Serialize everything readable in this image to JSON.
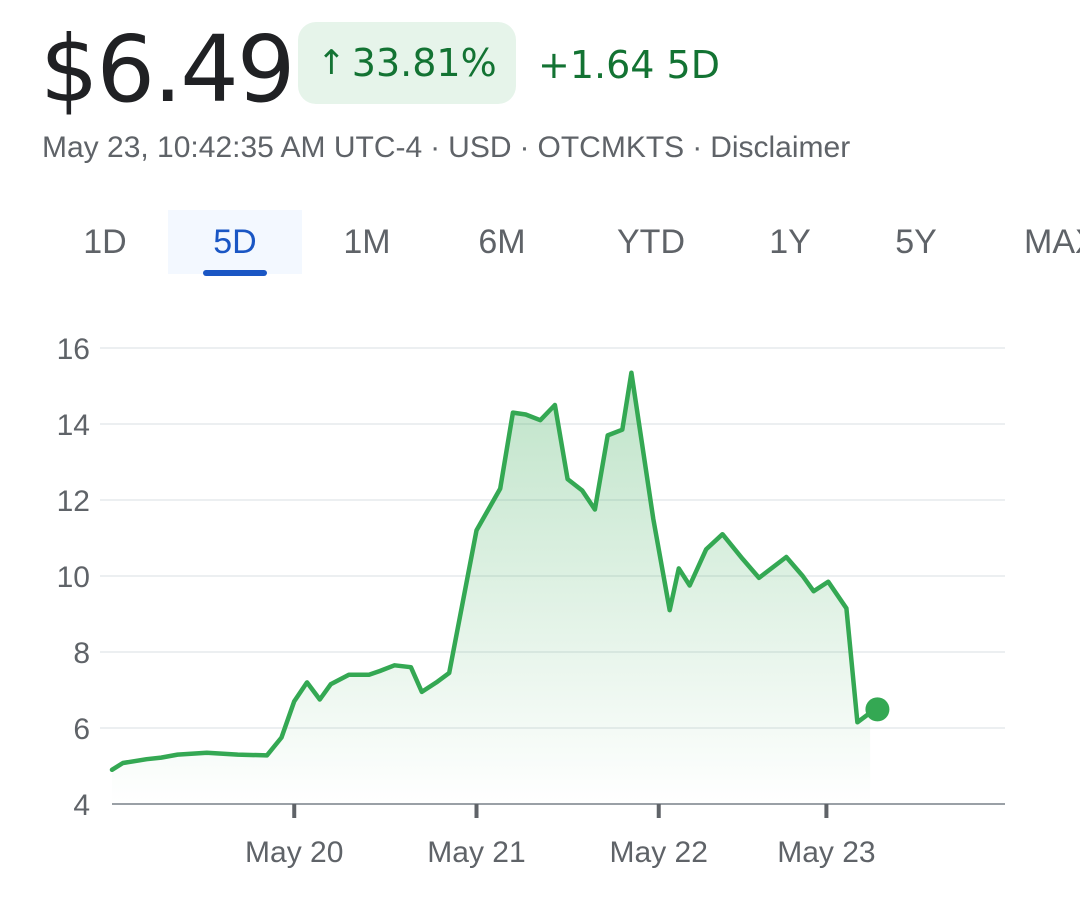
{
  "quote": {
    "price": "$6.49",
    "change_percent": "33.81%",
    "change_arrow_icon": "arrow-up-icon",
    "change_value": "+1.64 5D",
    "timestamp": "May 23, 10:42:35 AM UTC-4",
    "currency": "USD",
    "exchange": "OTCMKTS",
    "disclaimer": "Disclaimer",
    "separator": "·",
    "color_up": "#137333",
    "color_up_bg": "#e6f4ea"
  },
  "tabs": [
    {
      "label": "1D",
      "active": false
    },
    {
      "label": "5D",
      "active": true
    },
    {
      "label": "1M",
      "active": false
    },
    {
      "label": "6M",
      "active": false
    },
    {
      "label": "YTD",
      "active": false
    },
    {
      "label": "1Y",
      "active": false
    },
    {
      "label": "5Y",
      "active": false
    },
    {
      "label": "MAX",
      "active": false
    }
  ],
  "chart_data": {
    "type": "area",
    "line_color": "#34a853",
    "ylim": [
      4,
      16
    ],
    "yticks": [
      "4",
      "6",
      "8",
      "10",
      "12",
      "14",
      "16"
    ],
    "xlim": [
      0,
      4.9
    ],
    "xticks": [
      {
        "label": "May 20",
        "x": 1
      },
      {
        "label": "May 21",
        "x": 2
      },
      {
        "label": "May 22",
        "x": 3
      },
      {
        "label": "May 23",
        "x": 3.92
      }
    ],
    "grid": true,
    "last_point_marker": true,
    "series": [
      {
        "x": [
          0,
          0.06,
          0.19,
          0.27,
          0.36,
          0.52,
          0.69,
          0.85,
          0.93,
          1.0,
          1.07,
          1.14,
          1.2,
          1.3,
          1.41,
          1.47,
          1.55,
          1.64,
          1.7,
          1.78,
          1.85,
          2.0,
          2.13,
          2.2,
          2.27,
          2.35,
          2.43,
          2.5,
          2.58,
          2.65,
          2.72,
          2.8,
          2.85,
          2.97,
          3.06,
          3.11,
          3.17,
          3.26,
          3.35,
          3.46,
          3.55,
          3.7,
          3.79,
          3.85,
          3.93,
          4.03,
          4.09,
          4.16
        ],
        "y": [
          4.9,
          5.08,
          5.18,
          5.22,
          5.3,
          5.35,
          5.3,
          5.28,
          5.75,
          6.7,
          7.2,
          6.75,
          7.15,
          7.4,
          7.4,
          7.5,
          7.65,
          7.6,
          6.95,
          7.2,
          7.45,
          11.2,
          12.3,
          14.3,
          14.25,
          14.1,
          14.5,
          12.55,
          12.25,
          11.75,
          13.7,
          13.85,
          15.35,
          11.5,
          9.1,
          10.2,
          9.75,
          10.7,
          11.1,
          10.45,
          9.95,
          10.5,
          10.0,
          9.6,
          9.85,
          9.15,
          6.15,
          6.4
        ]
      }
    ],
    "last_point": {
      "x": 4.2,
      "y": 6.49
    }
  }
}
